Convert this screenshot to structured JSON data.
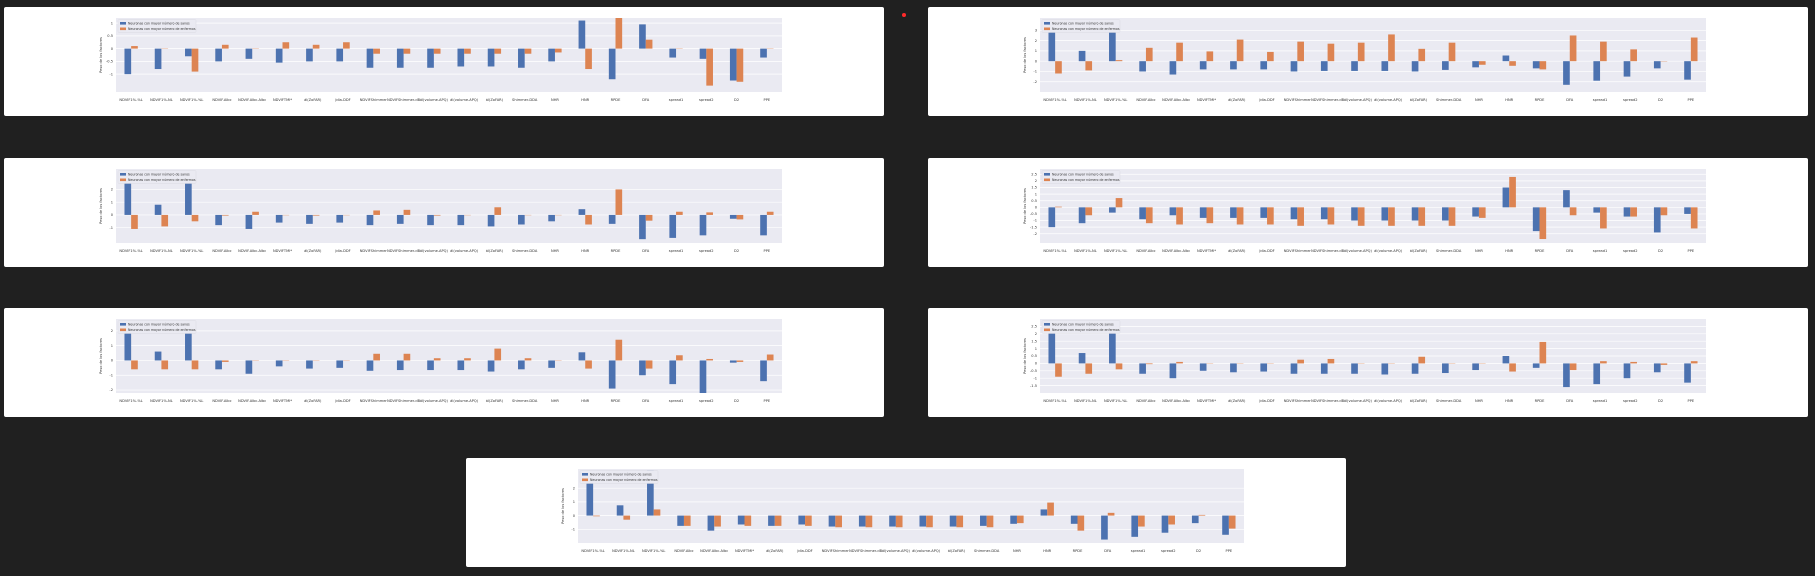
{
  "colors": {
    "series_a": "#4c72b0",
    "series_b": "#dd8452",
    "background": "#202020",
    "card": "#ffffff",
    "plot": "#eaeaf2",
    "marker": "#ff2a2a"
  },
  "chart_data": [
    {
      "type": "bar",
      "ylabel": "Peso de los factores",
      "ylim": [
        -1.7,
        1.2
      ],
      "yticks": [
        -1.0,
        -0.5,
        0.0,
        0.5,
        1.0
      ],
      "legend_position": "top-left",
      "categories": [
        "NDVIF1%-%L",
        "NDVIF1%-NL",
        "NDVIF1%-%L",
        "NDVIF.Albc",
        "NDVIF.Albc.Albc",
        "NDVIFTMI*",
        "ál(ZoFAR)",
        "Jdia-DDF",
        "NDVIFShimmer",
        "NDVIFShimmer-dB",
        "ál(volume-APQ)",
        "ál(volume-APQ)",
        "ál(ZoFAR)",
        "Shimmer-DDA",
        "NHR",
        "HNR",
        "RPDE",
        "DFA",
        "spread1",
        "spread2",
        "D2",
        "PPE"
      ],
      "series": [
        {
          "name": "Neuronas con mayor número de sanos",
          "values": [
            -1.0,
            -0.8,
            -0.3,
            -0.5,
            -0.4,
            -0.55,
            -0.5,
            -0.5,
            -0.75,
            -0.75,
            -0.75,
            -0.7,
            -0.7,
            -0.75,
            -0.5,
            1.1,
            -1.2,
            0.95,
            -0.35,
            -0.4,
            -1.25,
            -0.35
          ]
        },
        {
          "name": "Neuronas con mayor número de enfermos",
          "values": [
            0.1,
            0.0,
            -0.9,
            0.15,
            0.0,
            0.25,
            0.15,
            0.25,
            -0.2,
            -0.2,
            -0.2,
            -0.2,
            -0.2,
            -0.2,
            -0.15,
            -0.8,
            1.2,
            0.35,
            0.0,
            -1.45,
            -1.3,
            0.0
          ]
        }
      ]
    },
    {
      "type": "bar",
      "ylabel": "Peso de los factores",
      "ylim": [
        -3.0,
        4.2
      ],
      "yticks": [
        -2,
        -1,
        0,
        1,
        2,
        3
      ],
      "legend_position": "top-left",
      "categories": [
        "NDVIF1%-%L",
        "NDVIF1%-NL",
        "NDVIF1%-%L",
        "NDVIF.Albc",
        "NDVIF.Albc.Albc",
        "NDVIFTMI*",
        "ál(ZoFAR)",
        "Jdia-DDF",
        "NDVIFShimmer",
        "NDVIFShimmer-dB",
        "ál(volume-APQ)",
        "ál(volume-APQ)",
        "ál(ZoFAR)",
        "Shimmer-DDA",
        "NHR",
        "HNR",
        "RPDE",
        "DFA",
        "spread1",
        "spread2",
        "D2",
        "PPE"
      ],
      "series": [
        {
          "name": "Neuronas con mayor número de sanos",
          "values": [
            3.6,
            1.0,
            4.0,
            -1.0,
            -1.3,
            -0.8,
            -0.8,
            -0.8,
            -1.0,
            -0.95,
            -0.95,
            -0.95,
            -1.0,
            -0.85,
            -0.6,
            0.55,
            -0.7,
            -2.3,
            -1.9,
            -1.5,
            -0.7,
            -1.8
          ]
        },
        {
          "name": "Neuronas con mayor número de enfermos",
          "values": [
            -1.2,
            -0.9,
            0.1,
            1.3,
            1.8,
            0.95,
            2.1,
            0.9,
            1.9,
            1.7,
            1.8,
            2.6,
            1.2,
            1.8,
            -0.35,
            -0.45,
            -0.8,
            2.5,
            1.9,
            1.15,
            0.0,
            2.3
          ]
        }
      ]
    },
    {
      "type": "bar",
      "ylabel": "Peso de los factores",
      "ylim": [
        -2.2,
        3.6
      ],
      "yticks": [
        -1,
        0,
        1,
        2
      ],
      "legend_position": "top-left",
      "categories": [
        "NDVIF1%-%L",
        "NDVIF1%-NL",
        "NDVIF1%-%L",
        "NDVIF.Albc",
        "NDVIF.Albc.Albc",
        "NDVIFTMI*",
        "ál(ZoFAR)",
        "Jdia-DDF",
        "NDVIFShimmer",
        "NDVIFShimmer-dB",
        "ál(volume-APQ)",
        "ál(volume-APQ)",
        "ál(ZoFAR)",
        "Shimmer-DDA",
        "NHR",
        "HNR",
        "RPDE",
        "DFA",
        "spread1",
        "spread2",
        "D2",
        "PPE"
      ],
      "series": [
        {
          "name": "Neuronas con mayor número de sanos",
          "values": [
            2.8,
            0.8,
            3.2,
            -0.8,
            -1.1,
            -0.6,
            -0.7,
            -0.6,
            -0.8,
            -0.7,
            -0.8,
            -0.8,
            -0.9,
            -0.75,
            -0.5,
            0.45,
            -0.7,
            -1.9,
            -1.8,
            -1.6,
            -0.3,
            -1.6
          ]
        },
        {
          "name": "Neuronas con mayor número de enfermos",
          "values": [
            -1.1,
            -0.9,
            -0.5,
            -0.05,
            0.25,
            0.0,
            -0.05,
            0.0,
            0.35,
            0.4,
            -0.05,
            0.0,
            0.6,
            0.0,
            0.0,
            -0.75,
            2.0,
            -0.45,
            0.25,
            0.2,
            -0.35,
            0.25
          ]
        }
      ]
    },
    {
      "type": "bar",
      "ylabel": "Peso de los factores",
      "ylim": [
        -2.7,
        2.9
      ],
      "yticks": [
        -2.0,
        -1.5,
        -1.0,
        -0.5,
        0.0,
        0.5,
        1.0,
        1.5,
        2.0,
        2.5
      ],
      "legend_position": "top-left",
      "categories": [
        "NDVIF1%-%L",
        "NDVIF1%-NL",
        "NDVIF1%-%L",
        "NDVIF.Albc",
        "NDVIF.Albc.Albc",
        "NDVIFTMI*",
        "ál(ZoFAR)",
        "Jdia-DDF",
        "NDVIFShimmer",
        "NDVIFShimmer-dB",
        "ál(volume-APQ)",
        "ál(volume-APQ)",
        "ál(ZoFAR)",
        "Shimmer-DDA",
        "NHR",
        "HNR",
        "RPDE",
        "DFA",
        "spread1",
        "spread2",
        "D2",
        "PPE"
      ],
      "series": [
        {
          "name": "Neuronas con mayor número de sanos",
          "values": [
            -1.5,
            -1.2,
            -0.4,
            -0.9,
            -0.6,
            -0.8,
            -0.8,
            -0.8,
            -0.9,
            -0.9,
            -1.0,
            -1.0,
            -1.0,
            -1.0,
            -0.7,
            1.5,
            -1.8,
            1.3,
            -0.4,
            -0.7,
            -1.9,
            -0.5
          ]
        },
        {
          "name": "Neuronas con mayor número de enfermos",
          "values": [
            0.05,
            -0.6,
            0.7,
            -1.2,
            -1.3,
            -1.2,
            -1.3,
            -1.3,
            -1.4,
            -1.3,
            -1.4,
            -1.4,
            -1.4,
            -1.4,
            -0.8,
            2.3,
            -2.4,
            -0.6,
            -1.6,
            -0.7,
            -0.6,
            -1.6
          ]
        }
      ]
    },
    {
      "type": "bar",
      "ylabel": "Peso de los factores",
      "ylim": [
        -2.2,
        2.8
      ],
      "yticks": [
        -2,
        -1,
        0,
        1,
        2
      ],
      "legend_position": "top-left",
      "categories": [
        "NDVIF1%-%L",
        "NDVIF1%-NL",
        "NDVIF1%-%L",
        "NDVIF.Albc",
        "NDVIF.Albc.Albc",
        "NDVIFTMI*",
        "ál(ZoFAR)",
        "Jdia-DDF",
        "NDVIFShimmer",
        "NDVIFShimmer-dB",
        "ál(volume-APQ)",
        "ál(volume-APQ)",
        "ál(ZoFAR)",
        "Shimmer-DDA",
        "NHR",
        "HNR",
        "RPDE",
        "DFA",
        "spread1",
        "spread2",
        "D2",
        "PPE"
      ],
      "series": [
        {
          "name": "Neuronas con mayor número de sanos",
          "values": [
            2.2,
            0.6,
            2.5,
            -0.6,
            -0.9,
            -0.4,
            -0.55,
            -0.5,
            -0.7,
            -0.65,
            -0.65,
            -0.65,
            -0.75,
            -0.6,
            -0.5,
            0.55,
            -1.9,
            -1.0,
            -1.6,
            -2.2,
            -0.15,
            -1.4
          ]
        },
        {
          "name": "Neuronas con mayor número de enfermos",
          "values": [
            -0.6,
            -0.6,
            -0.6,
            -0.1,
            0.0,
            0.0,
            0.0,
            0.0,
            0.45,
            0.45,
            0.15,
            0.15,
            0.8,
            0.15,
            0.0,
            -0.55,
            1.4,
            -0.55,
            0.35,
            0.1,
            -0.1,
            0.4
          ]
        }
      ]
    },
    {
      "type": "bar",
      "ylabel": "Peso de los factores",
      "ylim": [
        -2.0,
        3.0
      ],
      "yticks": [
        -1.5,
        -1.0,
        -0.5,
        0.0,
        0.5,
        1.0,
        1.5,
        2.0,
        2.5
      ],
      "legend_position": "top-left",
      "categories": [
        "NDVIF1%-%L",
        "NDVIF1%-NL",
        "NDVIF1%-%L",
        "NDVIF.Albc",
        "NDVIF.Albc.Albc",
        "NDVIFTMI*",
        "ál(ZoFAR)",
        "Jdia-DDF",
        "NDVIFShimmer",
        "NDVIFShimmer-dB",
        "ál(volume-APQ)",
        "ál(volume-APQ)",
        "ál(ZoFAR)",
        "Shimmer-DDA",
        "NHR",
        "HNR",
        "RPDE",
        "DFA",
        "spread1",
        "spread2",
        "D2",
        "PPE"
      ],
      "series": [
        {
          "name": "Neuronas con mayor número de sanos",
          "values": [
            2.8,
            0.7,
            2.8,
            -0.7,
            -1.0,
            -0.5,
            -0.6,
            -0.55,
            -0.7,
            -0.7,
            -0.7,
            -0.75,
            -0.7,
            -0.65,
            -0.45,
            0.5,
            -0.3,
            -1.6,
            -1.4,
            -1.0,
            -0.6,
            -1.3
          ]
        },
        {
          "name": "Neuronas con mayor número de enfermos",
          "values": [
            -0.9,
            -0.7,
            -0.4,
            -0.05,
            0.1,
            0.0,
            0.0,
            0.0,
            0.25,
            0.3,
            0.0,
            0.0,
            0.45,
            0.0,
            0.0,
            -0.55,
            1.45,
            -0.45,
            0.15,
            0.1,
            -0.1,
            0.15
          ]
        }
      ]
    },
    {
      "type": "bar",
      "ylabel": "Peso de los factores",
      "ylim": [
        -2.0,
        3.4
      ],
      "yticks": [
        -1,
        0,
        1,
        2
      ],
      "legend_position": "top-left",
      "categories": [
        "NDVIF1%-%L",
        "NDVIF1%-NL",
        "NDVIF1%-%L",
        "NDVIF.Albc",
        "NDVIF.Albc.Albc",
        "NDVIFTMI*",
        "ál(ZoFAR)",
        "Jdia-DDF",
        "NDVIFShimmer",
        "NDVIFShimmer-dB",
        "ál(volume-APQ)",
        "ál(volume-APQ)",
        "ál(ZoFAR)",
        "Shimmer-DDA",
        "NHR",
        "HNR",
        "RPDE",
        "DFA",
        "spread1",
        "spread2",
        "D2",
        "PPE"
      ],
      "series": [
        {
          "name": "Neuronas con mayor número de sanos",
          "values": [
            2.9,
            0.75,
            3.3,
            -0.75,
            -1.1,
            -0.65,
            -0.75,
            -0.65,
            -0.8,
            -0.8,
            -0.8,
            -0.8,
            -0.8,
            -0.75,
            -0.6,
            0.45,
            -0.6,
            -1.75,
            -1.55,
            -1.25,
            -0.55,
            -1.4
          ]
        },
        {
          "name": "Neuronas con mayor número de enfermos",
          "values": [
            -0.05,
            -0.3,
            0.45,
            -0.75,
            -0.8,
            -0.75,
            -0.75,
            -0.75,
            -0.85,
            -0.85,
            -0.85,
            -0.85,
            -0.85,
            -0.85,
            -0.55,
            0.95,
            -1.1,
            0.2,
            -0.8,
            -0.65,
            0.05,
            -0.95
          ]
        }
      ]
    }
  ]
}
